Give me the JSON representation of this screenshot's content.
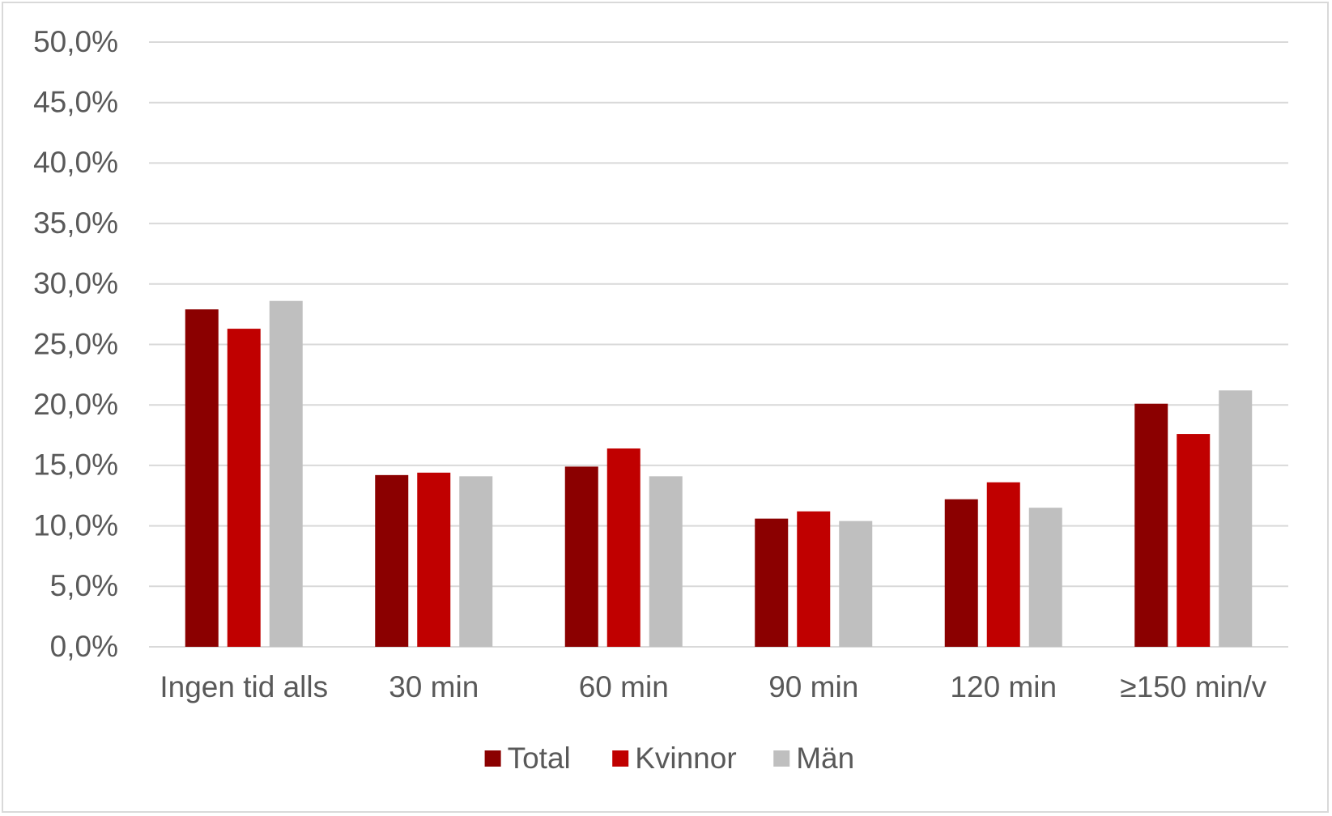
{
  "chart_data": {
    "type": "bar",
    "categories": [
      "Ingen tid alls",
      "30 min",
      "60 min",
      "90 min",
      "120 min",
      "≥150 min/v"
    ],
    "series": [
      {
        "name": "Total",
        "color": "#8b0000",
        "values": [
          27.9,
          14.2,
          14.9,
          10.6,
          12.2,
          20.1
        ]
      },
      {
        "name": "Kvinnor",
        "color": "#c00000",
        "values": [
          26.3,
          14.4,
          16.4,
          11.2,
          13.6,
          17.6
        ]
      },
      {
        "name": "Män",
        "color": "#bfbfbf",
        "values": [
          28.6,
          14.1,
          14.1,
          10.4,
          11.5,
          21.2
        ]
      }
    ],
    "y_ticks": [
      "0,0%",
      "5,0%",
      "10,0%",
      "15,0%",
      "20,0%",
      "25,0%",
      "30,0%",
      "35,0%",
      "40,0%",
      "45,0%",
      "50,0%"
    ],
    "ylim": [
      0,
      50
    ],
    "grid": true,
    "legend_position": "bottom"
  }
}
